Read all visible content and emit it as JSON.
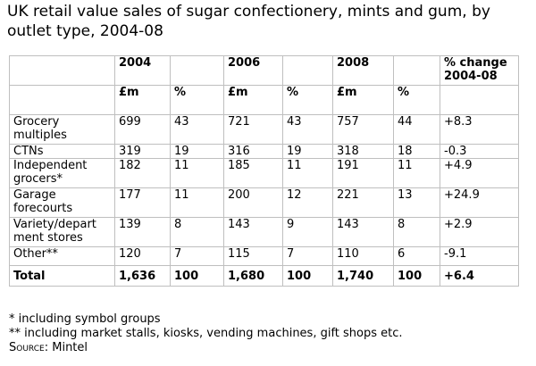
{
  "title": "UK retail value sales of sugar confectionery, mints and gum, by outlet type, 2004-08",
  "header_years": [
    "2004",
    "2006",
    "2008"
  ],
  "header_change": "% change 2004-08",
  "unit_labels": {
    "value": "£m",
    "share": "%"
  },
  "rows": [
    {
      "label": "Grocery multiples",
      "v2004": "699",
      "p2004": "43",
      "v2006": "721",
      "p2006": "43",
      "v2008": "757",
      "p2008": "44",
      "change": "+8.3"
    },
    {
      "label": "CTNs",
      "v2004": "319",
      "p2004": "19",
      "v2006": "316",
      "p2006": "19",
      "v2008": "318",
      "p2008": "18",
      "change": "-0.3"
    },
    {
      "label": "Independent grocers*",
      "v2004": "182",
      "p2004": "11",
      "v2006": "185",
      "p2006": "11",
      "v2008": "191",
      "p2008": "11",
      "change": "+4.9"
    },
    {
      "label": "Garage forecourts",
      "v2004": "177",
      "p2004": "11",
      "v2006": "200",
      "p2006": "12",
      "v2008": "221",
      "p2008": "13",
      "change": "+24.9"
    },
    {
      "label": "Variety/depart ment stores",
      "v2004": "139",
      "p2004": "8",
      "v2006": "143",
      "p2006": "9",
      "v2008": "143",
      "p2008": "8",
      "change": "+2.9"
    },
    {
      "label": "Other**",
      "v2004": "120",
      "p2004": "7",
      "v2006": "115",
      "p2006": "7",
      "v2008": "110",
      "p2008": "6",
      "change": "-9.1"
    }
  ],
  "total": {
    "label": "Total",
    "v2004": "1,636",
    "p2004": "100",
    "v2006": "1,680",
    "p2006": "100",
    "v2008": "1,740",
    "p2008": "100",
    "change": "+6.4"
  },
  "notes": {
    "note1": "* including symbol groups",
    "note2": "** including market stalls, kiosks, vending machines, gift shops etc.",
    "source_label": "Source:",
    "source_value": "Mintel"
  }
}
